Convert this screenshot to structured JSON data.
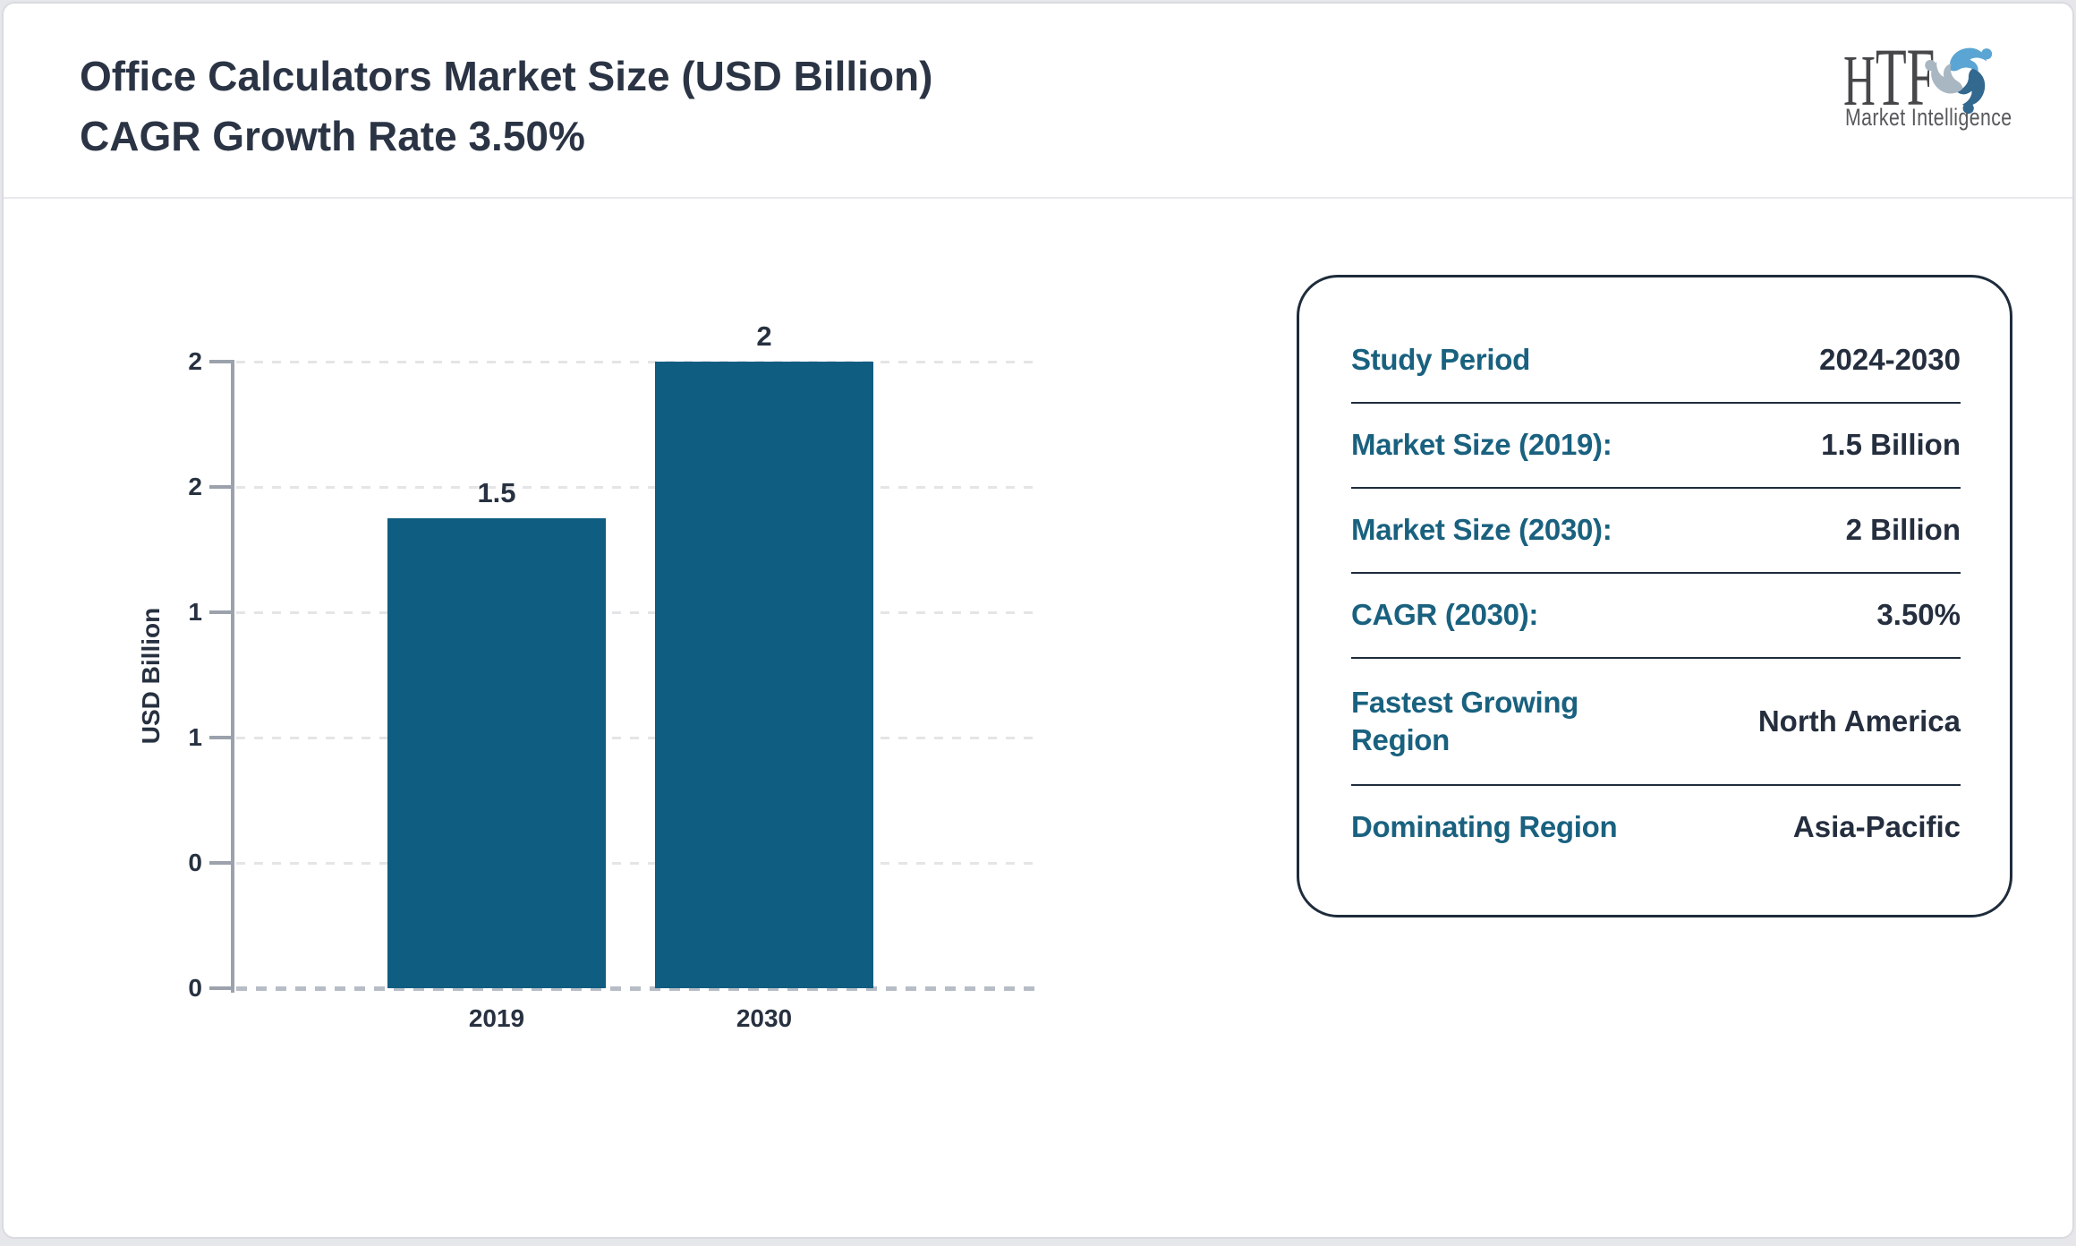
{
  "header": {
    "title_line1": "Office Calculators Market Size (USD Billion)",
    "title_line2": "CAGR Growth Rate 3.50%"
  },
  "logo": {
    "name": "HTF",
    "name_first_letter": "H",
    "name_rest": "TF",
    "subtitle": "Market Intelligence"
  },
  "chart_data": {
    "type": "bar",
    "categories": [
      "2019",
      "2030"
    ],
    "values": [
      1.5,
      2
    ],
    "bar_labels": [
      "1.5",
      "2"
    ],
    "title": "Office Calculators Market Size (USD Billion)",
    "xlabel": "",
    "ylabel": "USD Billion",
    "ylim": [
      0,
      2
    ],
    "ytick_interval": 0.4,
    "ytick_labels_top_to_bottom": [
      "2",
      "2",
      "1",
      "1",
      "0",
      "0"
    ],
    "grid": true,
    "gridline_style": "dashed",
    "legend": false,
    "bar_color": "#0f5d81"
  },
  "info_panel": {
    "rows": [
      {
        "label": "Study Period",
        "value": "2024-2030"
      },
      {
        "label": "Market Size (2019):",
        "value": "1.5 Billion"
      },
      {
        "label": "Market Size (2030):",
        "value": "2 Billion"
      },
      {
        "label": "CAGR (2030):",
        "value": "3.50%"
      },
      {
        "label": "Fastest Growing Region",
        "value": "North America"
      },
      {
        "label": "Dominating Region",
        "value": "Asia-Pacific"
      }
    ]
  },
  "colors": {
    "bar": "#0f5d81",
    "label_teal": "#19617f",
    "text_navy": "#2a3444",
    "panel_border": "#1e2c3c",
    "axis_gray": "#9ba2ac",
    "page_background": "#e6e7ea"
  }
}
